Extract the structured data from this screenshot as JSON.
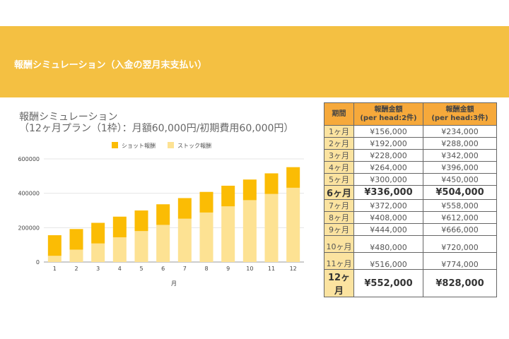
{
  "header": {
    "title": "報酬シミュレーション（入金の翌月末支払い）"
  },
  "colors": {
    "band": "#f4c042",
    "shot": "#fbbc04",
    "stock": "#fde293",
    "table_header": "#f6a93b",
    "period_cell": "#fbe3a0"
  },
  "chart_data": {
    "type": "bar",
    "stacked": true,
    "title": "報酬シミュレーション\n（12ヶ月プラン（1枠）：月額60,000円/初期費用60,000円）",
    "xlabel": "月",
    "ylabel": "",
    "categories": [
      "1",
      "2",
      "3",
      "4",
      "5",
      "6",
      "7",
      "8",
      "9",
      "10",
      "11",
      "12"
    ],
    "ylim": [
      0,
      600000
    ],
    "yticks": [
      "0",
      "200000",
      "400000",
      "600000"
    ],
    "legend": "top",
    "grid": true,
    "series": [
      {
        "name": "ストック報酬",
        "values": [
          36000,
          72000,
          108000,
          144000,
          180000,
          216000,
          252000,
          288000,
          324000,
          360000,
          396000,
          432000
        ]
      },
      {
        "name": "ショット報酬",
        "values": [
          120000,
          120000,
          120000,
          120000,
          120000,
          120000,
          120000,
          120000,
          120000,
          120000,
          120000,
          120000
        ]
      }
    ]
  },
  "table": {
    "headers": [
      "期間",
      "報酬金額\n(per head:2件)",
      "報酬金額\n(per head:3件)"
    ],
    "rows": [
      {
        "period": "1ヶ月",
        "a": "¥156,000",
        "b": "¥234,000",
        "h": 17
      },
      {
        "period": "2ヶ月",
        "a": "¥192,000",
        "b": "¥288,000",
        "h": 17
      },
      {
        "period": "3ヶ月",
        "a": "¥228,000",
        "b": "¥342,000",
        "h": 17
      },
      {
        "period": "4ヶ月",
        "a": "¥264,000",
        "b": "¥396,000",
        "h": 17
      },
      {
        "period": "5ヶ月",
        "a": "¥300,000",
        "b": "¥450,000",
        "h": 17
      },
      {
        "period": "6ヶ月",
        "a": "¥336,000",
        "b": "¥504,000",
        "h": 18,
        "bold": true
      },
      {
        "period": "7ヶ月",
        "a": "¥372,000",
        "b": "¥558,000",
        "h": 17
      },
      {
        "period": "8ヶ月",
        "a": "¥408,000",
        "b": "¥612,000",
        "h": 17
      },
      {
        "period": "9ヶ月",
        "a": "¥444,000",
        "b": "¥666,000",
        "h": 17
      },
      {
        "period": "10ヶ月",
        "a": "¥480,000",
        "b": "¥720,000",
        "h": 24
      },
      {
        "period": "11ヶ月",
        "a": "¥516,000",
        "b": "¥774,000",
        "h": 24
      },
      {
        "period": "12ヶ月",
        "a": "¥552,000",
        "b": "¥828,000",
        "h": 24,
        "bold": true
      }
    ]
  }
}
